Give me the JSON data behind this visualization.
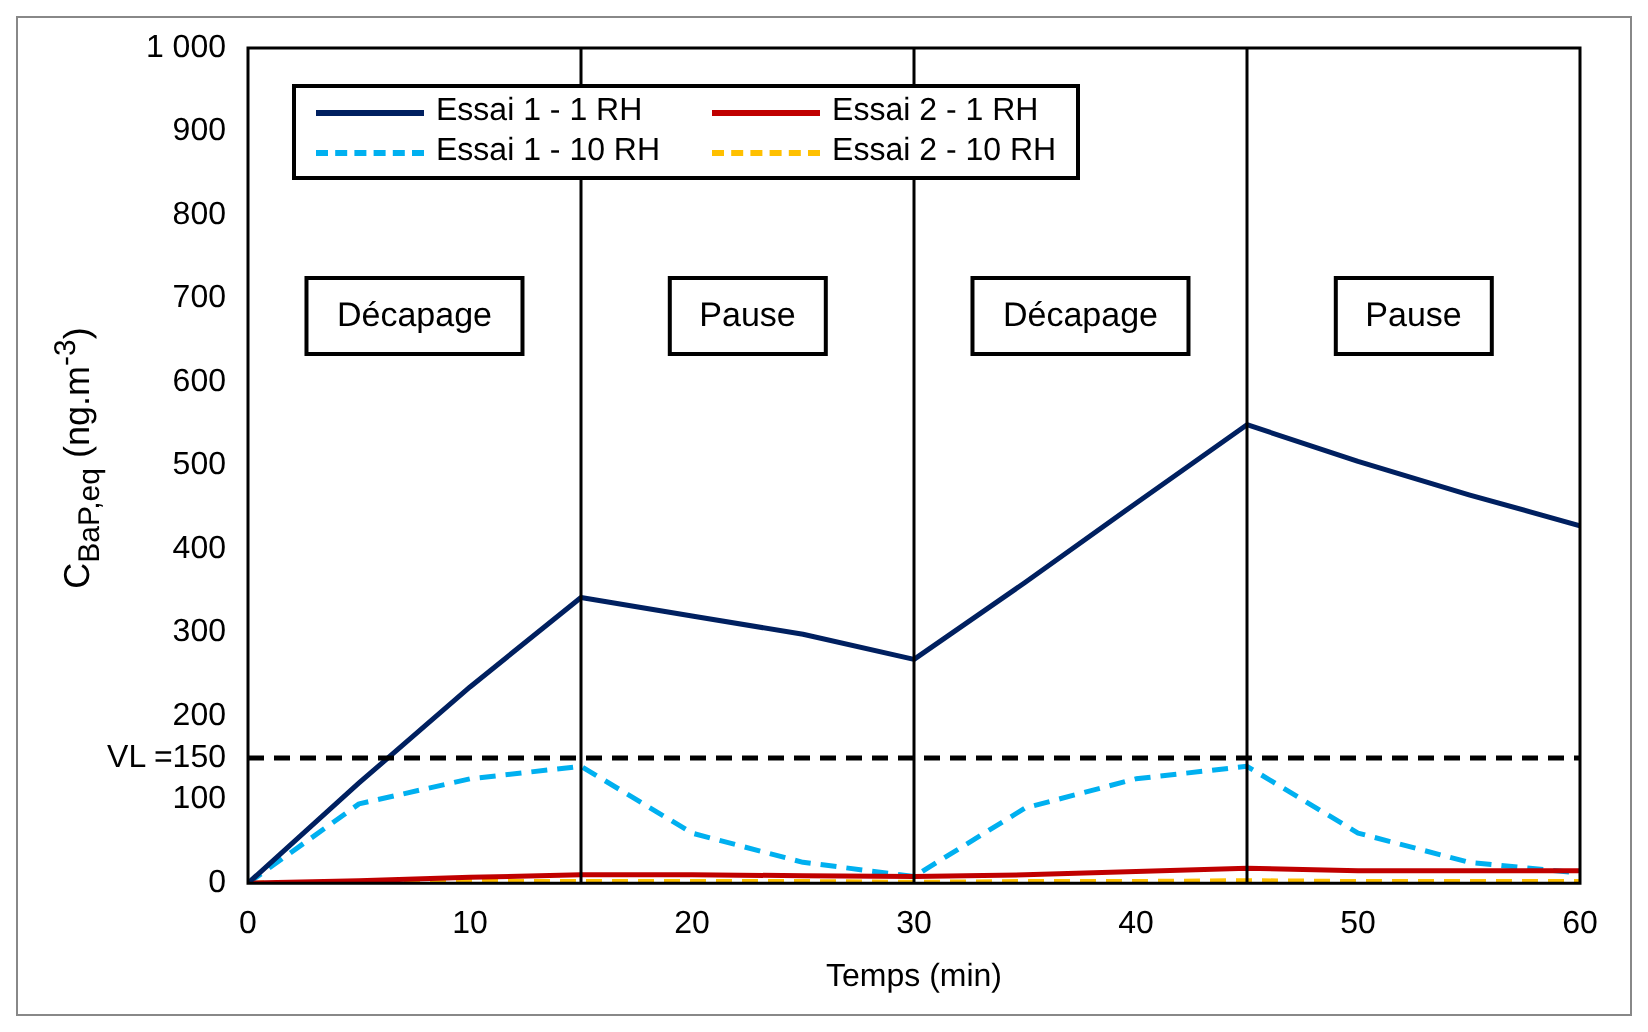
{
  "chart_data": {
    "type": "line",
    "xlabel": "Temps (min)",
    "ylabel": "C$_{BaP,eq}$ (ng.m$^{-3}$)",
    "x": [
      0,
      5,
      10,
      15,
      20,
      25,
      30,
      35,
      40,
      45,
      50,
      55,
      60
    ],
    "series": [
      {
        "name": "Essai 1 - 1 RH",
        "color": "#002060",
        "line_style": "solid",
        "values": [
          0,
          120,
          235,
          342,
          320,
          298,
          268,
          360,
          455,
          549,
          505,
          465,
          428
        ]
      },
      {
        "name": "Essai 2 - 1 RH",
        "color": "#c00000",
        "line_style": "solid",
        "values": [
          0,
          3,
          7,
          10,
          10,
          9,
          8,
          10,
          14,
          18,
          15,
          15,
          15
        ]
      },
      {
        "name": "Essai 1 - 10 RH",
        "color": "#00b0f0",
        "line_style": "dashed",
        "values": [
          0,
          95,
          125,
          140,
          60,
          25,
          8,
          90,
          125,
          140,
          60,
          25,
          12
        ]
      },
      {
        "name": "Essai 2 - 10 RH",
        "color": "#ffc000",
        "line_style": "dashed",
        "values": [
          0,
          1,
          2,
          2,
          2,
          2,
          1,
          2,
          2,
          3,
          2,
          2,
          2
        ]
      }
    ],
    "xlim": [
      0,
      60
    ],
    "xticks": [
      0,
      10,
      20,
      30,
      40,
      50,
      60
    ],
    "ylim": [
      0,
      1000
    ],
    "yticks": [
      0,
      100,
      {
        "value": 150,
        "label": "VL =150"
      },
      200,
      300,
      400,
      500,
      600,
      700,
      800,
      900,
      {
        "value": 1000,
        "label": "1 000"
      }
    ],
    "ref_lines": [
      {
        "axis": "y",
        "value": 150,
        "color": "#000000",
        "line_style": "dashed"
      },
      {
        "axis": "x",
        "value": 15,
        "color": "#000000",
        "line_style": "solid"
      },
      {
        "axis": "x",
        "value": 30,
        "color": "#000000",
        "line_style": "solid"
      },
      {
        "axis": "x",
        "value": 45,
        "color": "#000000",
        "line_style": "solid"
      }
    ],
    "annotations": [
      "Décapage",
      "Pause",
      "Décapage",
      "Pause"
    ],
    "grid": false,
    "legend": "top left",
    "marker": "none"
  }
}
